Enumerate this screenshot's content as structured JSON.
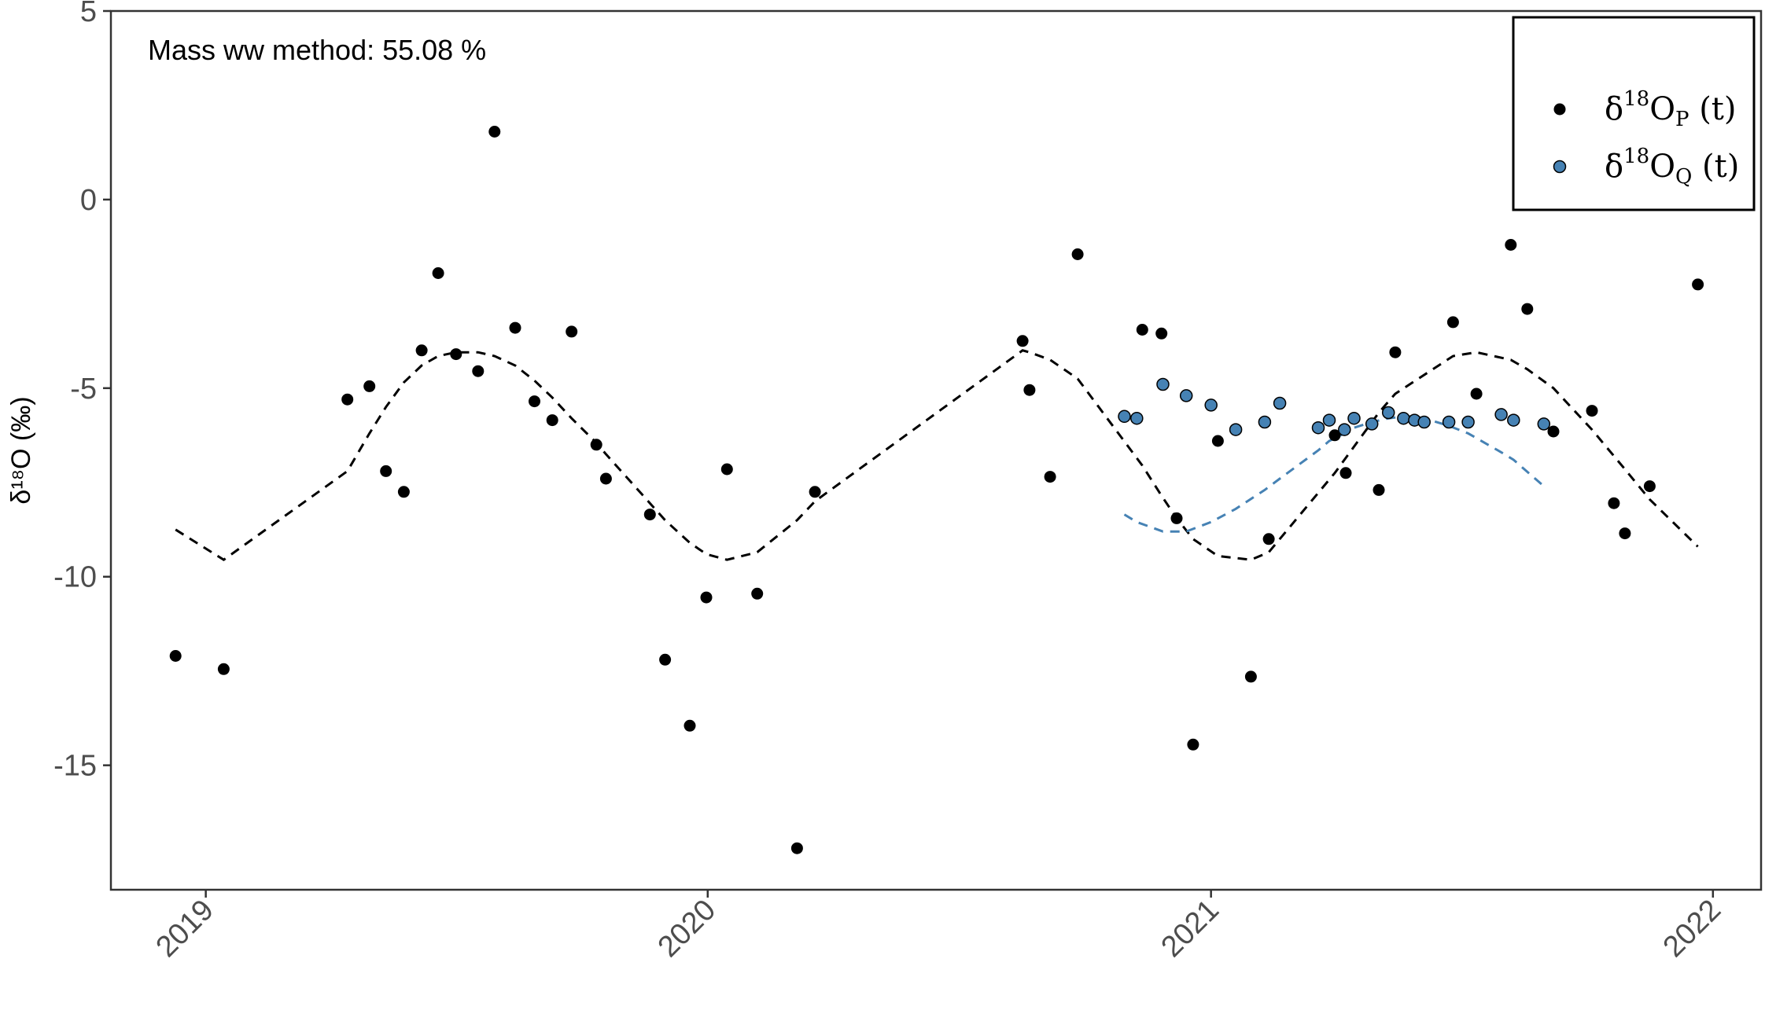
{
  "chart_data": {
    "type": "scatter",
    "title": "",
    "annotation": "Mass ww method: 55.08 %",
    "ylabel": "δ¹⁸O (‰)",
    "xlabel": "",
    "ylim": [
      -18.3,
      5
    ],
    "xlim": [
      "2018-10-24",
      "2022-02-05"
    ],
    "x_ticks": [
      {
        "date": "2019-01-01",
        "label": "2019"
      },
      {
        "date": "2020-01-01",
        "label": "2020"
      },
      {
        "date": "2021-01-01",
        "label": "2021"
      },
      {
        "date": "2022-01-01",
        "label": "2022"
      }
    ],
    "y_ticks": [
      5,
      0,
      -5,
      -10,
      -15
    ],
    "y_tick_labels": [
      "5",
      "0",
      "-5",
      "-10",
      "-15"
    ],
    "grid": false,
    "legend": {
      "position": "top-right",
      "entries": [
        {
          "base": "δ",
          "sup": "18",
          "main": "O",
          "sub": "P",
          "tail": " (t)",
          "color": "#000000"
        },
        {
          "base": "δ",
          "sup": "18",
          "main": "O",
          "sub": "Q",
          "tail": " (t)",
          "color": "#4682b4"
        }
      ]
    },
    "series": [
      {
        "name": "δ18OP (t)",
        "kind": "points",
        "color": "#000000",
        "points": [
          [
            "2018-12-10",
            -12.1
          ],
          [
            "2019-01-14",
            -12.45
          ],
          [
            "2019-04-14",
            -5.3
          ],
          [
            "2019-04-30",
            -4.95
          ],
          [
            "2019-05-12",
            -7.2
          ],
          [
            "2019-05-25",
            -7.75
          ],
          [
            "2019-06-07",
            -4.0
          ],
          [
            "2019-06-19",
            -1.95
          ],
          [
            "2019-07-02",
            -4.1
          ],
          [
            "2019-07-18",
            -4.55
          ],
          [
            "2019-07-30",
            1.8
          ],
          [
            "2019-08-14",
            -3.4
          ],
          [
            "2019-08-28",
            -5.35
          ],
          [
            "2019-09-10",
            -5.85
          ],
          [
            "2019-09-24",
            -3.5
          ],
          [
            "2019-10-12",
            -6.5
          ],
          [
            "2019-10-19",
            -7.4
          ],
          [
            "2019-11-20",
            -8.35
          ],
          [
            "2019-12-01",
            -12.2
          ],
          [
            "2019-12-19",
            -13.95
          ],
          [
            "2019-12-31",
            -10.55
          ],
          [
            "2020-01-15",
            -7.15
          ],
          [
            "2020-02-06",
            -10.45
          ],
          [
            "2020-03-06",
            -17.2
          ],
          [
            "2020-03-19",
            -7.75
          ],
          [
            "2020-08-17",
            -3.75
          ],
          [
            "2020-08-22",
            -5.05
          ],
          [
            "2020-09-06",
            -7.35
          ],
          [
            "2020-09-26",
            -1.45
          ],
          [
            "2020-11-12",
            -3.45
          ],
          [
            "2020-11-26",
            -3.55
          ],
          [
            "2020-12-07",
            -8.45
          ],
          [
            "2020-12-19",
            -14.45
          ],
          [
            "2021-01-06",
            -6.4
          ],
          [
            "2021-01-30",
            -12.65
          ],
          [
            "2021-02-12",
            -9.0
          ],
          [
            "2021-04-01",
            -6.25
          ],
          [
            "2021-04-09",
            -7.25
          ],
          [
            "2021-05-15",
            -4.05
          ],
          [
            "2021-05-03",
            -7.7
          ],
          [
            "2021-06-26",
            -3.25
          ],
          [
            "2021-07-13",
            -5.15
          ],
          [
            "2021-08-07",
            -1.2
          ],
          [
            "2021-08-19",
            -2.9
          ],
          [
            "2021-09-07",
            -6.15
          ],
          [
            "2021-10-05",
            -5.6
          ],
          [
            "2021-10-21",
            -8.05
          ],
          [
            "2021-10-29",
            -8.85
          ],
          [
            "2021-11-16",
            -7.6
          ],
          [
            "2021-12-21",
            -2.25
          ]
        ]
      },
      {
        "name": "δ18OQ (t)",
        "kind": "points",
        "color": "#4682b4",
        "points": [
          [
            "2020-10-30",
            -5.75
          ],
          [
            "2020-11-08",
            -5.8
          ],
          [
            "2020-11-27",
            -4.9
          ],
          [
            "2020-12-14",
            -5.2
          ],
          [
            "2021-01-01",
            -5.45
          ],
          [
            "2021-01-19",
            -6.1
          ],
          [
            "2021-02-09",
            -5.9
          ],
          [
            "2021-02-20",
            -5.4
          ],
          [
            "2021-03-20",
            -6.05
          ],
          [
            "2021-03-28",
            -5.85
          ],
          [
            "2021-04-08",
            -6.1
          ],
          [
            "2021-04-15",
            -5.8
          ],
          [
            "2021-04-28",
            -5.95
          ],
          [
            "2021-05-10",
            -5.65
          ],
          [
            "2021-05-21",
            -5.8
          ],
          [
            "2021-05-29",
            -5.85
          ],
          [
            "2021-06-05",
            -5.9
          ],
          [
            "2021-06-23",
            -5.9
          ],
          [
            "2021-07-07",
            -5.9
          ],
          [
            "2021-07-31",
            -5.7
          ],
          [
            "2021-08-09",
            -5.85
          ],
          [
            "2021-08-31",
            -5.95
          ]
        ]
      },
      {
        "name": "P fit",
        "kind": "dashed-line",
        "color": "#000000",
        "points": [
          [
            "2018-12-10",
            -8.75
          ],
          [
            "2019-01-14",
            -9.55
          ],
          [
            "2019-04-14",
            -7.2
          ],
          [
            "2019-04-30",
            -6.2
          ],
          [
            "2019-05-12",
            -5.5
          ],
          [
            "2019-05-25",
            -4.85
          ],
          [
            "2019-06-07",
            -4.4
          ],
          [
            "2019-06-19",
            -4.15
          ],
          [
            "2019-07-02",
            -4.05
          ],
          [
            "2019-07-18",
            -4.05
          ],
          [
            "2019-07-30",
            -4.15
          ],
          [
            "2019-08-14",
            -4.4
          ],
          [
            "2019-08-28",
            -4.8
          ],
          [
            "2019-09-10",
            -5.25
          ],
          [
            "2019-09-24",
            -5.8
          ],
          [
            "2019-10-12",
            -6.45
          ],
          [
            "2019-10-19",
            -6.75
          ],
          [
            "2019-11-20",
            -8.05
          ],
          [
            "2019-12-01",
            -8.5
          ],
          [
            "2019-12-19",
            -9.1
          ],
          [
            "2019-12-31",
            -9.4
          ],
          [
            "2020-01-15",
            -9.55
          ],
          [
            "2020-02-06",
            -9.35
          ],
          [
            "2020-03-06",
            -8.5
          ],
          [
            "2020-03-19",
            -8.0
          ],
          [
            "2020-08-17",
            -4.0
          ],
          [
            "2020-08-22",
            -4.05
          ],
          [
            "2020-09-06",
            -4.25
          ],
          [
            "2020-09-26",
            -4.75
          ],
          [
            "2020-11-12",
            -7.05
          ],
          [
            "2020-11-26",
            -7.85
          ],
          [
            "2020-12-07",
            -8.45
          ],
          [
            "2020-12-19",
            -9.0
          ],
          [
            "2021-01-06",
            -9.45
          ],
          [
            "2021-01-30",
            -9.55
          ],
          [
            "2021-02-12",
            -9.35
          ],
          [
            "2021-04-01",
            -7.25
          ],
          [
            "2021-04-09",
            -6.85
          ],
          [
            "2021-05-03",
            -5.65
          ],
          [
            "2021-05-15",
            -5.15
          ],
          [
            "2021-06-26",
            -4.15
          ],
          [
            "2021-07-13",
            -4.05
          ],
          [
            "2021-08-07",
            -4.25
          ],
          [
            "2021-08-19",
            -4.5
          ],
          [
            "2021-09-07",
            -5.0
          ],
          [
            "2021-10-05",
            -6.1
          ],
          [
            "2021-10-21",
            -6.8
          ],
          [
            "2021-10-29",
            -7.15
          ],
          [
            "2021-11-16",
            -7.95
          ],
          [
            "2021-12-21",
            -9.2
          ]
        ]
      },
      {
        "name": "Q fit",
        "kind": "dashed-line",
        "color": "#4682b4",
        "points": [
          [
            "2020-10-30",
            -8.35
          ],
          [
            "2020-11-08",
            -8.55
          ],
          [
            "2020-11-27",
            -8.8
          ],
          [
            "2020-12-14",
            -8.8
          ],
          [
            "2021-01-01",
            -8.55
          ],
          [
            "2021-01-19",
            -8.2
          ],
          [
            "2021-02-09",
            -7.7
          ],
          [
            "2021-02-20",
            -7.4
          ],
          [
            "2021-03-20",
            -6.65
          ],
          [
            "2021-03-28",
            -6.4
          ],
          [
            "2021-04-08",
            -6.2
          ],
          [
            "2021-04-15",
            -6.05
          ],
          [
            "2021-04-28",
            -5.9
          ],
          [
            "2021-05-10",
            -5.8
          ],
          [
            "2021-05-21",
            -5.75
          ],
          [
            "2021-05-29",
            -5.75
          ],
          [
            "2021-06-05",
            -5.8
          ],
          [
            "2021-06-23",
            -6.0
          ],
          [
            "2021-07-07",
            -6.2
          ],
          [
            "2021-07-31",
            -6.7
          ],
          [
            "2021-08-09",
            -6.9
          ],
          [
            "2021-08-31",
            -7.6
          ]
        ]
      }
    ]
  }
}
